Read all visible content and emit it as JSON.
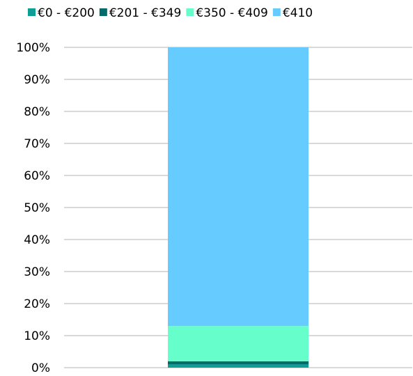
{
  "chart_data": {
    "type": "stacked_bar",
    "categories": [
      null
    ],
    "series": [
      {
        "name": "€0 - €200",
        "color": "#0f9e96",
        "values": [
          1
        ]
      },
      {
        "name": "€201 - €349",
        "color": "#006b6b",
        "values": [
          1
        ]
      },
      {
        "name": "€350 - €409",
        "color": "#66ffcc",
        "values": [
          11
        ]
      },
      {
        "name": "€410",
        "color": "#66ccff",
        "values": [
          87
        ]
      }
    ],
    "ylim": [
      0,
      100
    ],
    "yticks": [
      {
        "value": 0,
        "label": "0%"
      },
      {
        "value": 10,
        "label": "10%"
      },
      {
        "value": 20,
        "label": "20%"
      },
      {
        "value": 30,
        "label": "30%"
      },
      {
        "value": 40,
        "label": "40%"
      },
      {
        "value": 50,
        "label": "50%"
      },
      {
        "value": 60,
        "label": "60%"
      },
      {
        "value": 70,
        "label": "70%"
      },
      {
        "value": 80,
        "label": "80%"
      },
      {
        "value": 90,
        "label": "90%"
      },
      {
        "value": 100,
        "label": "100%"
      }
    ],
    "grid": true,
    "legend": "top"
  }
}
